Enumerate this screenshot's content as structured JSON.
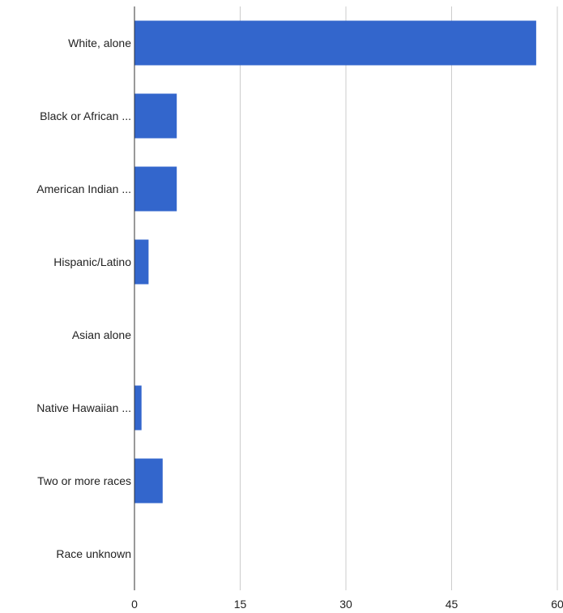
{
  "chart_data": {
    "type": "bar",
    "orientation": "horizontal",
    "categories": [
      "White, alone",
      "Black or African ...",
      "American Indian ...",
      "Hispanic/Latino",
      "Asian alone",
      "Native Hawaiian ...",
      "Two or more races",
      "Race unknown"
    ],
    "values": [
      57,
      6,
      6,
      2,
      0,
      1,
      4,
      0
    ],
    "xlim": [
      0,
      60
    ],
    "xticks": [
      0,
      15,
      30,
      45,
      60
    ],
    "xtick_labels": [
      "0",
      "15",
      "30",
      "45",
      "60"
    ],
    "grid": "vertical",
    "legend": "none",
    "bar_color": "#3366cc",
    "grid_color": "#cccccc",
    "axis_color": "#333333"
  }
}
